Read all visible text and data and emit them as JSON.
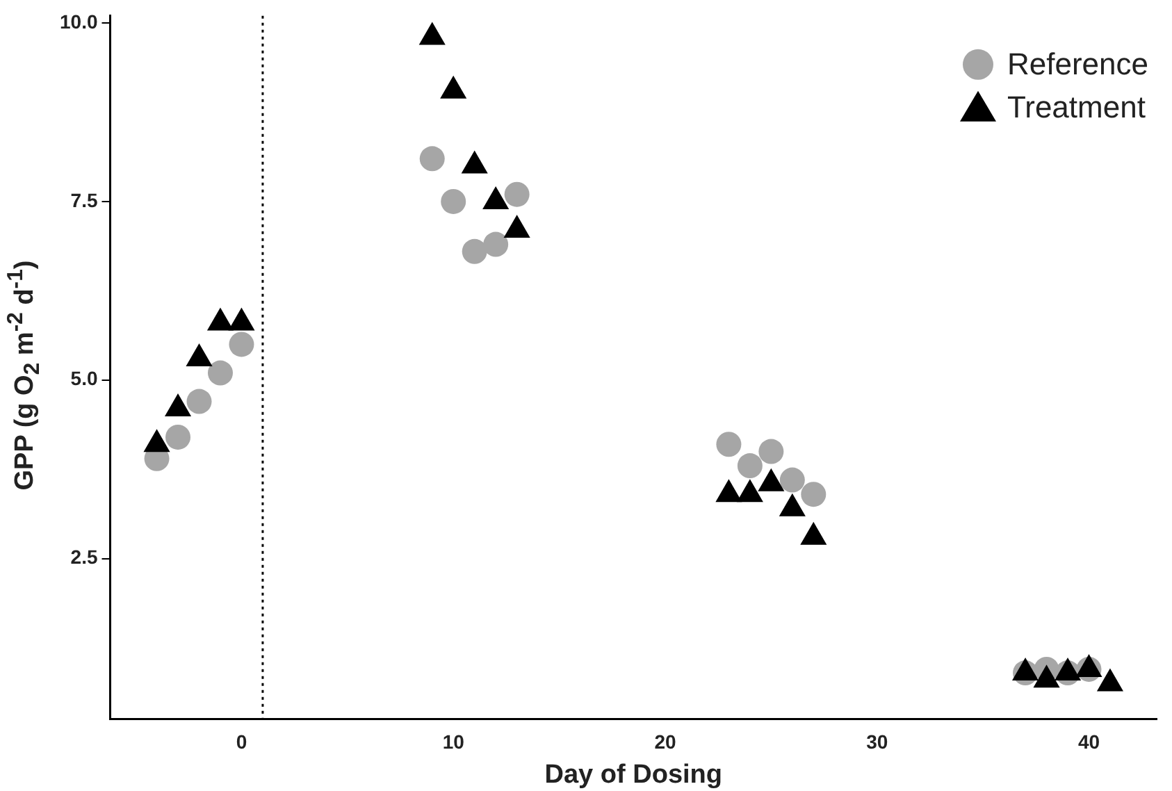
{
  "chart_data": {
    "type": "scatter",
    "xlabel": "Day of Dosing",
    "ylabel": "GPP (g O$_{2}$ m$^{-2}$ d$^{-1}$)",
    "xlim": [
      -6.2,
      43.2
    ],
    "xticks": [
      0,
      10,
      20,
      30,
      40
    ],
    "ylim": [
      0.25,
      10.1
    ],
    "yticks": [
      {
        "value": 2.5,
        "label": "2.5"
      },
      {
        "value": 5,
        "label": "5.0"
      },
      {
        "value": 7.5,
        "label": "7.5"
      },
      {
        "value": 10,
        "label": "10.0"
      }
    ],
    "grid": false,
    "legend": "top right",
    "ref_lines": [
      {
        "axis": "x",
        "value": 1,
        "line_style": "dotted",
        "color": "#000000"
      }
    ],
    "series": [
      {
        "name": "Reference",
        "color": "#a6a6a6",
        "marker": "circle",
        "x": [
          -4,
          -3,
          -2,
          -1,
          0,
          9,
          10,
          11,
          12,
          13,
          23,
          24,
          25,
          26,
          27,
          37,
          38,
          39,
          40
        ],
        "values": [
          3.9,
          4.2,
          4.7,
          5.1,
          5.5,
          8.1,
          7.5,
          6.8,
          6.9,
          7.6,
          4.1,
          3.8,
          4.0,
          3.6,
          3.4,
          0.9,
          0.95,
          0.9,
          0.95
        ]
      },
      {
        "name": "Treatment",
        "color": "#000000",
        "marker": "triangle",
        "x": [
          -4,
          -3,
          -2,
          -1,
          0,
          9,
          10,
          11,
          12,
          13,
          23,
          24,
          25,
          26,
          27,
          37,
          38,
          39,
          40,
          41
        ],
        "values": [
          4.1,
          4.6,
          5.3,
          5.8,
          5.8,
          9.8,
          9.05,
          8.0,
          7.5,
          7.1,
          3.4,
          3.4,
          3.55,
          3.2,
          2.8,
          0.9,
          0.8,
          0.9,
          0.95,
          0.75
        ]
      }
    ]
  }
}
